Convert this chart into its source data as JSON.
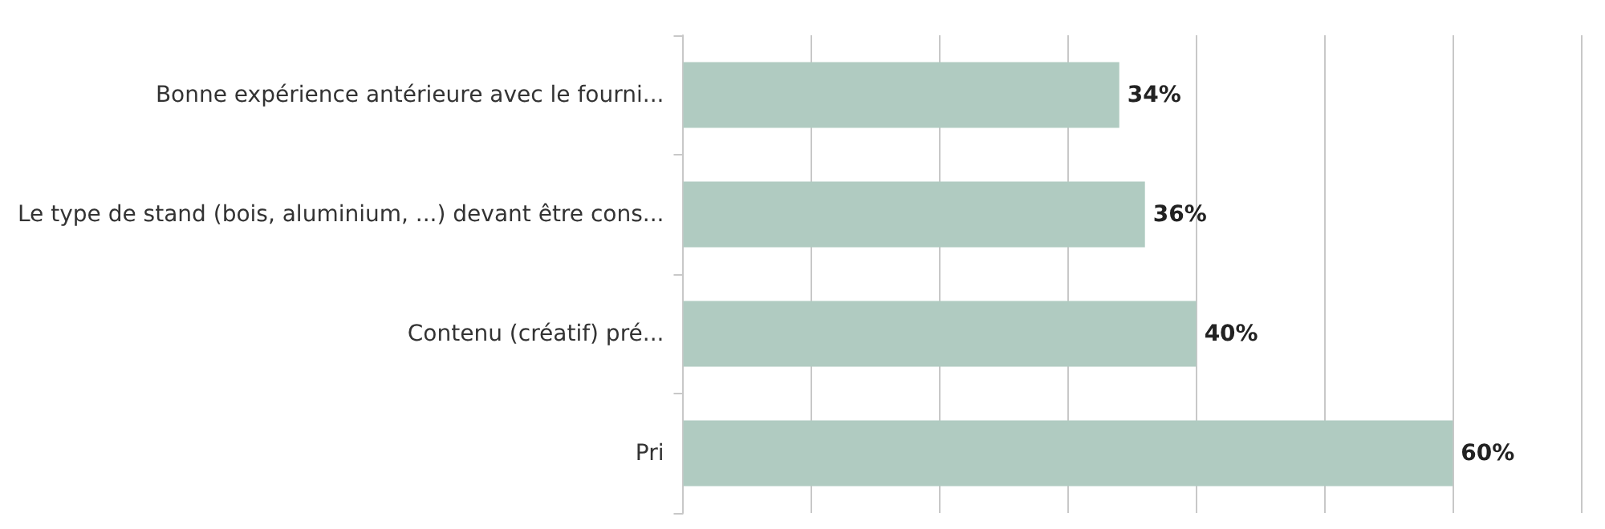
{
  "chart_data": {
    "type": "bar",
    "orientation": "horizontal",
    "categories": [
      "Bonne expérience antérieure avec le fourni...",
      "Le type de stand (bois, aluminium, ...) devant être cons...",
      "Contenu (créatif) pré...",
      "Pri"
    ],
    "values": [
      34,
      36,
      40,
      60
    ],
    "value_labels": [
      "34%",
      "36%",
      "40%",
      "60%"
    ],
    "color": "#b0cbc1",
    "xlim": [
      0,
      70
    ],
    "xticks": [
      {
        "value": 0,
        "label": null
      },
      {
        "value": 10,
        "label": null
      },
      {
        "value": 20,
        "label": null
      },
      {
        "value": 30,
        "label": null
      },
      {
        "value": 40,
        "label": null
      },
      {
        "value": 50,
        "label": null
      },
      {
        "value": 60,
        "label": null
      },
      {
        "value": 70,
        "label": null
      }
    ],
    "grid": "x",
    "tick_labels": "y"
  }
}
